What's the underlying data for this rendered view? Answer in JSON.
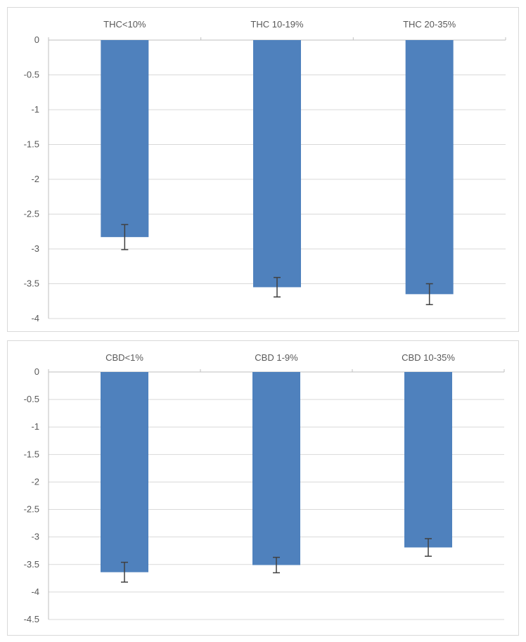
{
  "chart_data": [
    {
      "type": "bar",
      "categories": [
        "THC<10%",
        "THC 10-19%",
        "THC 20-35%"
      ],
      "values": [
        -2.83,
        -3.55,
        -3.65
      ],
      "error": [
        0.18,
        0.14,
        0.15
      ],
      "ylim": [
        -4,
        0
      ],
      "ytick_step": 0.5,
      "yticks": [
        "0",
        "-0.5",
        "-1",
        "-1.5",
        "-2",
        "-2.5",
        "-3",
        "-3.5",
        "-4"
      ],
      "category_label_position": "top",
      "grid": true,
      "bar_color": "#4f81bd"
    },
    {
      "type": "bar",
      "categories": [
        "CBD<1%",
        "CBD 1-9%",
        "CBD 10-35%"
      ],
      "values": [
        -3.64,
        -3.51,
        -3.19
      ],
      "error": [
        0.18,
        0.14,
        0.16
      ],
      "ylim": [
        -4.5,
        0
      ],
      "ytick_step": 0.5,
      "yticks": [
        "0",
        "-0.5",
        "-1",
        "-1.5",
        "-2",
        "-2.5",
        "-3",
        "-3.5",
        "-4",
        "-4.5"
      ],
      "category_label_position": "top",
      "grid": true,
      "bar_color": "#4f81bd"
    }
  ]
}
